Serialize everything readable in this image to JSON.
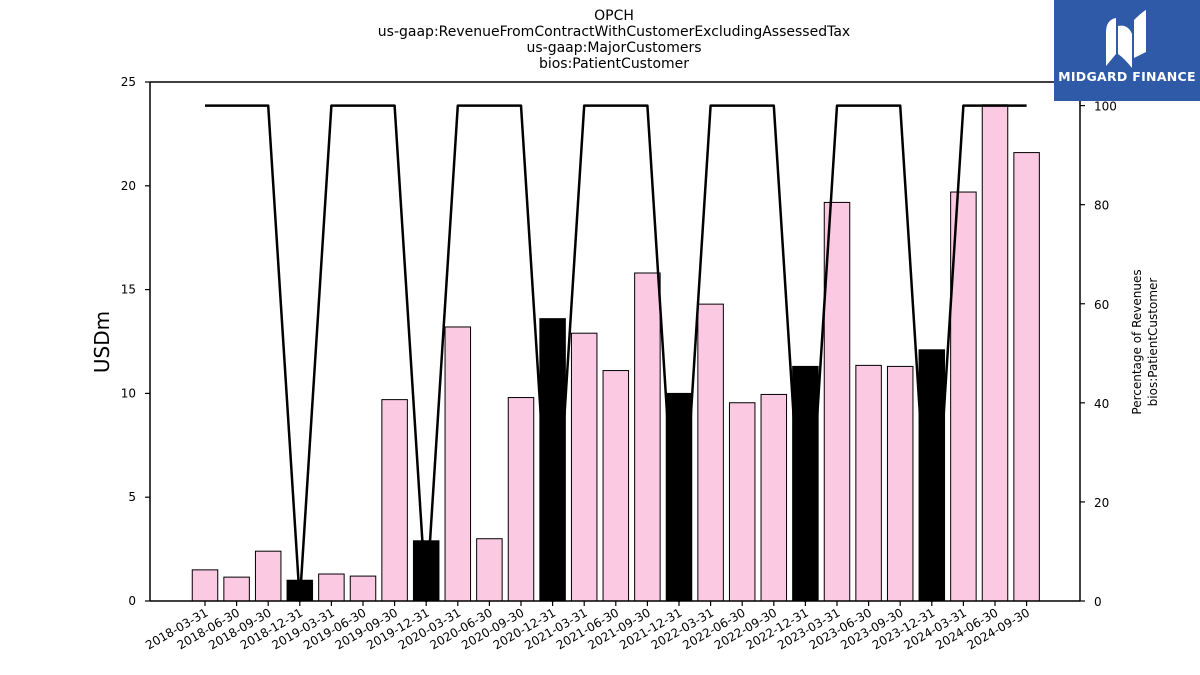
{
  "chart_data": {
    "type": "bar",
    "title_lines": [
      "OPCH",
      "us-gaap:RevenueFromContractWithCustomerExcludingAssessedTax",
      "us-gaap:MajorCustomers",
      "bios:PatientCustomer"
    ],
    "ylabel": "USDm",
    "y2label_lines": [
      "Percentage of Revenues",
      "bios:PatientCustomer"
    ],
    "ylim": [
      0,
      25
    ],
    "y2lim": [
      0,
      100
    ],
    "yticks": [
      0,
      5,
      10,
      15,
      20,
      25
    ],
    "y2ticks": [
      0,
      20,
      40,
      60,
      80,
      100
    ],
    "categories": [
      "2018-03-31",
      "2018-06-30",
      "2018-09-30",
      "2018-12-31",
      "2019-03-31",
      "2019-06-30",
      "2019-09-30",
      "2019-12-31",
      "2020-03-31",
      "2020-06-30",
      "2020-09-30",
      "2020-12-31",
      "2021-03-31",
      "2021-06-30",
      "2021-09-30",
      "2021-12-31",
      "2022-03-31",
      "2022-06-30",
      "2022-09-30",
      "2022-12-31",
      "2023-03-31",
      "2023-06-30",
      "2023-09-30",
      "2023-12-31",
      "2024-03-31",
      "2024-06-30",
      "2024-09-30"
    ],
    "series": [
      {
        "type": "bar",
        "axis": "left",
        "values": [
          1.5,
          1.15,
          2.4,
          1.0,
          1.3,
          1.2,
          9.7,
          2.9,
          13.2,
          3.0,
          9.8,
          13.6,
          12.9,
          11.1,
          15.8,
          10.0,
          14.3,
          9.55,
          9.95,
          11.3,
          19.2,
          11.35,
          11.3,
          12.1,
          19.7,
          23.9,
          21.6
        ],
        "colors": [
          "#fcc9e2",
          "#fcc9e2",
          "#fcc9e2",
          "#000000",
          "#fcc9e2",
          "#fcc9e2",
          "#fcc9e2",
          "#000000",
          "#fcc9e2",
          "#fcc9e2",
          "#fcc9e2",
          "#000000",
          "#fcc9e2",
          "#fcc9e2",
          "#fcc9e2",
          "#000000",
          "#fcc9e2",
          "#fcc9e2",
          "#fcc9e2",
          "#000000",
          "#fcc9e2",
          "#fcc9e2",
          "#fcc9e2",
          "#000000",
          "#fcc9e2",
          "#fcc9e2",
          "#fcc9e2"
        ]
      },
      {
        "type": "line",
        "axis": "right",
        "values": [
          100,
          100,
          100,
          0,
          100,
          100,
          100,
          0,
          100,
          100,
          100,
          0,
          100,
          100,
          100,
          0,
          100,
          100,
          100,
          0,
          100,
          100,
          100,
          0,
          100,
          100,
          100
        ],
        "color": "#000000"
      }
    ],
    "grid": false
  },
  "logo": {
    "text": "MIDGARD FINANCE",
    "background": "#2f5aa8"
  }
}
